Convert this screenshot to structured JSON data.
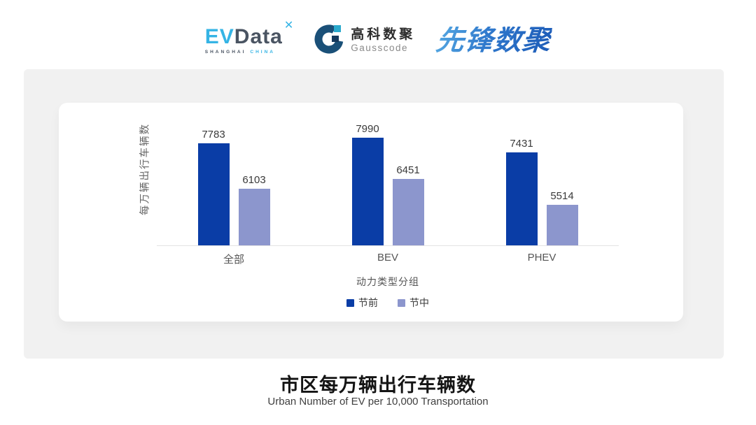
{
  "header": {
    "evdata_logo": {
      "ev": "EV",
      "data": "Data",
      "mark": "✕",
      "sub_left": "SHANGHAI",
      "sub_right": "CHINA"
    },
    "gausscode_logo": {
      "cn": "高科数聚",
      "en": "Gausscode"
    },
    "xianfeng_logo": "先锋数聚"
  },
  "chart_data": {
    "type": "bar",
    "categories": [
      "全部",
      "BEV",
      "PHEV"
    ],
    "series": [
      {
        "name": "节前",
        "color": "#0a3da6",
        "values": [
          7783,
          7990,
          7431
        ]
      },
      {
        "name": "节中",
        "color": "#8c96cd",
        "values": [
          6103,
          6451,
          5514
        ]
      }
    ],
    "xlabel": "动力类型分组",
    "ylabel": "每万辆出行车辆数",
    "ylim": [
      4000,
      8400
    ],
    "grid": false,
    "legend_position": "bottom",
    "axis_line_color": "#e3e3e3"
  },
  "footer": {
    "title": "市区每万辆出行车辆数",
    "subtitle": "Urban Number of EV per 10,000 Transportation"
  }
}
